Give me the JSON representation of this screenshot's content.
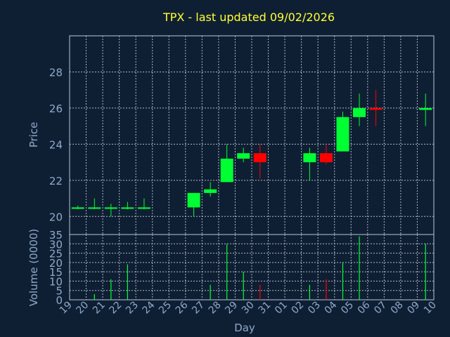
{
  "chart_data": [
    {
      "type": "candlestick",
      "title": "TPX - last updated 09/02/2026",
      "ylabel": "Price",
      "ylim": [
        19.0,
        30.0
      ],
      "yticks": [
        20,
        22,
        24,
        26,
        28
      ],
      "grid": true,
      "colors": {
        "up": "#00ff33",
        "down": "#ff0000",
        "title": "#ffff33"
      },
      "candles": [
        {
          "day": "19",
          "open": 20.5,
          "high": 20.6,
          "low": 20.4,
          "close": 20.5
        },
        {
          "day": "20",
          "open": 20.5,
          "high": 21.0,
          "low": 20.4,
          "close": 20.5
        },
        {
          "day": "21",
          "open": 20.5,
          "high": 20.7,
          "low": 20.0,
          "close": 20.5
        },
        {
          "day": "22",
          "open": 20.5,
          "high": 20.8,
          "low": 20.4,
          "close": 20.5
        },
        {
          "day": "23",
          "open": 20.5,
          "high": 21.0,
          "low": 20.4,
          "close": 20.5
        },
        {
          "day": "26",
          "open": 20.5,
          "high": 21.3,
          "low": 20.0,
          "close": 21.3
        },
        {
          "day": "27",
          "open": 21.3,
          "high": 21.9,
          "low": 21.1,
          "close": 21.5
        },
        {
          "day": "28",
          "open": 21.9,
          "high": 24.0,
          "low": 21.9,
          "close": 23.2
        },
        {
          "day": "29",
          "open": 23.2,
          "high": 23.8,
          "low": 23.0,
          "close": 23.5
        },
        {
          "day": "30",
          "open": 23.5,
          "high": 24.0,
          "low": 22.1,
          "close": 23.0
        },
        {
          "day": "02",
          "open": 23.0,
          "high": 23.8,
          "low": 22.0,
          "close": 23.5
        },
        {
          "day": "03",
          "open": 23.5,
          "high": 24.0,
          "low": 22.9,
          "close": 23.0
        },
        {
          "day": "04",
          "open": 23.6,
          "high": 25.8,
          "low": 23.6,
          "close": 25.5
        },
        {
          "day": "05",
          "open": 25.5,
          "high": 26.8,
          "low": 25.0,
          "close": 26.0
        },
        {
          "day": "06",
          "open": 26.0,
          "high": 27.0,
          "low": 25.0,
          "close": 25.9
        },
        {
          "day": "09",
          "open": 25.9,
          "high": 26.8,
          "low": 25.0,
          "close": 26.0
        }
      ]
    },
    {
      "type": "bar",
      "ylabel": "Volume (0000)",
      "xlabel": "Day",
      "ylim": [
        0,
        35
      ],
      "yticks": [
        0,
        5,
        10,
        15,
        20,
        25,
        30,
        35
      ],
      "grid": true,
      "categories": [
        "19",
        "20",
        "21",
        "22",
        "23",
        "24",
        "25",
        "26",
        "27",
        "28",
        "29",
        "30",
        "31",
        "01",
        "02",
        "03",
        "04",
        "05",
        "06",
        "07",
        "08",
        "09",
        "10"
      ],
      "values": [
        0,
        3,
        11,
        19,
        0,
        0,
        0,
        0,
        8,
        30,
        15,
        8,
        0,
        0,
        8,
        11,
        20,
        34,
        0,
        0,
        0,
        30,
        0
      ],
      "bar_colors": [
        "up",
        "up",
        "up",
        "up",
        "up",
        "up",
        "up",
        "up",
        "up",
        "up",
        "up",
        "down",
        "up",
        "up",
        "up",
        "down",
        "up",
        "up",
        "up",
        "up",
        "up",
        "up",
        "up"
      ]
    }
  ]
}
